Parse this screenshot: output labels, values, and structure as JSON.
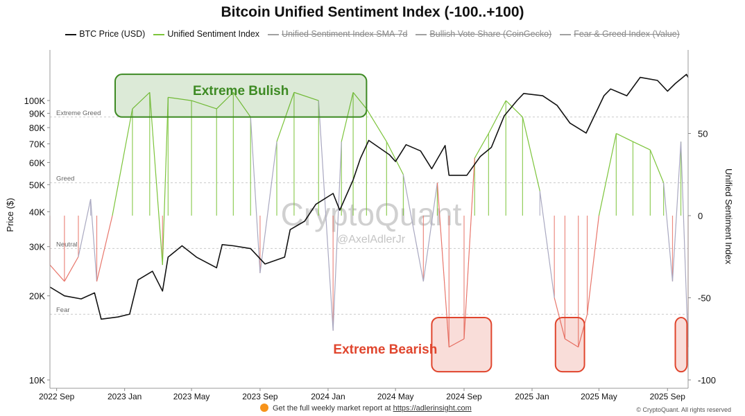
{
  "chart_data": {
    "type": "line",
    "title": "Bitcoin Unified Sentiment Index (-100..+100)",
    "ylabel_left": "Price ($)",
    "ylabel_right": "Unified Sentiment Index",
    "y_left_scale": "log",
    "y_left_range": [
      10000,
      150000
    ],
    "y_right_range": [
      -100,
      100
    ],
    "y_left_ticks": [
      10000,
      20000,
      30000,
      40000,
      50000,
      60000,
      70000,
      80000,
      90000,
      100000
    ],
    "y_left_tick_labels": [
      "10K",
      "20K",
      "30K",
      "40K",
      "50K",
      "60K",
      "70K",
      "80K",
      "90K",
      "100K"
    ],
    "y_right_ticks": [
      -100,
      -50,
      0,
      50
    ],
    "y_right_tick_labels": [
      "-100",
      "-50",
      "0",
      "50"
    ],
    "x_range": [
      "2022-08-20",
      "2025-10-08"
    ],
    "x_ticks": [
      "2022-09-01",
      "2023-01-01",
      "2023-05-01",
      "2023-09-01",
      "2024-01-01",
      "2024-05-01",
      "2024-09-01",
      "2025-01-01",
      "2025-05-01",
      "2025-09-01"
    ],
    "x_tick_labels": [
      "2022 Sep",
      "2023 Jan",
      "2023 May",
      "2023 Sep",
      "2024 Jan",
      "2024 May",
      "2024 Sep",
      "2025 Jan",
      "2025 May",
      "2025 Sep"
    ],
    "reference_lines": [
      {
        "label": "Extreme Greed",
        "value": 60
      },
      {
        "label": "Greed",
        "value": 20
      },
      {
        "label": "Neutral",
        "value": -20
      },
      {
        "label": "Fear",
        "value": -60
      }
    ],
    "legend_position": "top",
    "series": [
      {
        "name": "BTC Price (USD)",
        "axis": "left",
        "color": "#111111",
        "visible": true,
        "x": [
          "2022-08-20",
          "2022-09-15",
          "2022-10-15",
          "2022-11-08",
          "2022-11-20",
          "2022-12-20",
          "2023-01-10",
          "2023-01-25",
          "2023-02-20",
          "2023-03-10",
          "2023-03-20",
          "2023-04-14",
          "2023-05-10",
          "2023-06-15",
          "2023-06-25",
          "2023-07-15",
          "2023-08-15",
          "2023-09-10",
          "2023-10-15",
          "2023-10-25",
          "2023-11-20",
          "2023-12-10",
          "2024-01-10",
          "2024-01-22",
          "2024-02-15",
          "2024-02-28",
          "2024-03-14",
          "2024-04-20",
          "2024-05-01",
          "2024-05-20",
          "2024-06-15",
          "2024-07-05",
          "2024-07-29",
          "2024-08-05",
          "2024-09-06",
          "2024-09-30",
          "2024-10-20",
          "2024-11-12",
          "2024-12-05",
          "2024-12-17",
          "2025-01-20",
          "2025-02-15",
          "2025-03-10",
          "2025-04-08",
          "2025-05-10",
          "2025-05-22",
          "2025-06-20",
          "2025-07-14",
          "2025-08-14",
          "2025-09-01",
          "2025-09-15",
          "2025-10-05",
          "2025-10-08"
        ],
        "y": [
          21500,
          20000,
          19500,
          20500,
          16500,
          16800,
          17200,
          22800,
          24500,
          20800,
          27500,
          30200,
          27500,
          25200,
          30500,
          30200,
          29500,
          26000,
          27500,
          34500,
          37000,
          42500,
          46500,
          40500,
          52000,
          62000,
          72000,
          64000,
          60500,
          69500,
          66000,
          57000,
          69000,
          54000,
          54000,
          63000,
          68000,
          88000,
          100000,
          106000,
          104000,
          96000,
          83000,
          76500,
          104000,
          110000,
          104000,
          121000,
          118000,
          108000,
          115000,
          124000,
          121000
        ]
      },
      {
        "name": "Unified Sentiment Index",
        "axis": "right",
        "visible": true,
        "color_above_20": "#7cc43a",
        "color_between": "#a9a8c0",
        "color_below_minus20": "#e8766b",
        "x": [
          "2022-08-20",
          "2022-09-15",
          "2022-10-10",
          "2022-11-01",
          "2022-11-12",
          "2022-12-10",
          "2023-01-15",
          "2023-02-15",
          "2023-03-10",
          "2023-03-20",
          "2023-05-01",
          "2023-06-15",
          "2023-07-15",
          "2023-08-15",
          "2023-09-01",
          "2023-10-01",
          "2023-11-01",
          "2023-12-15",
          "2024-01-10",
          "2024-01-25",
          "2024-02-15",
          "2024-03-10",
          "2024-04-15",
          "2024-05-15",
          "2024-06-20",
          "2024-07-15",
          "2024-08-05",
          "2024-09-01",
          "2024-09-20",
          "2024-10-15",
          "2024-11-15",
          "2024-12-15",
          "2025-01-15",
          "2025-02-10",
          "2025-03-01",
          "2025-03-25",
          "2025-04-10",
          "2025-05-01",
          "2025-06-01",
          "2025-07-01",
          "2025-08-01",
          "2025-08-25",
          "2025-09-10",
          "2025-09-25",
          "2025-10-08"
        ],
        "y": [
          -30,
          -40,
          -25,
          10,
          -40,
          0,
          65,
          75,
          -30,
          72,
          70,
          65,
          75,
          60,
          -35,
          45,
          75,
          70,
          -70,
          45,
          75,
          65,
          45,
          25,
          -40,
          20,
          -80,
          -75,
          35,
          50,
          70,
          60,
          15,
          -50,
          -75,
          -80,
          -60,
          0,
          50,
          45,
          40,
          20,
          -40,
          45,
          -80
        ]
      },
      {
        "name": "Unified Sentiment Index SMA-7d",
        "axis": "right",
        "visible": false
      },
      {
        "name": "Bullish Vote Share (CoinGecko)",
        "axis": "right",
        "visible": false
      },
      {
        "name": "Fear & Greed Index (Value)",
        "axis": "right",
        "visible": false
      }
    ],
    "annotations": [
      {
        "text": "Extreme Bulish",
        "color": "#3d8a23",
        "from": "2022-12-15",
        "to": "2024-03-10",
        "y_from": 60,
        "y_to": 86
      },
      {
        "text": "Extreme Bearish",
        "color": "#e0452d",
        "from": "2024-07-05",
        "to": "2024-10-20",
        "y_from": -95,
        "y_to": -62
      },
      {
        "text": "",
        "color": "#e0452d",
        "from": "2025-02-12",
        "to": "2025-04-05",
        "y_from": -95,
        "y_to": -62
      },
      {
        "text": "",
        "color": "#e0452d",
        "from": "2025-09-15",
        "to": "2025-10-06",
        "y_from": -95,
        "y_to": -62
      }
    ],
    "watermark": "CryptoQuant",
    "watermark_handle": "@AxelAdlerJr"
  },
  "footer": {
    "note_text": "Get the full weekly market report at ",
    "link_text": "https://adlerinsight.com",
    "copyright": "© CryptoQuant. All rights reserved"
  }
}
